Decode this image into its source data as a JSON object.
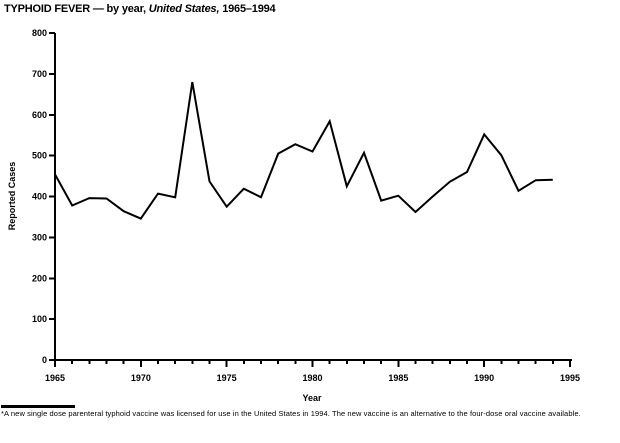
{
  "title": {
    "part1": "TYPHOID FEVER — by year, ",
    "part2": "United States,",
    "part3": " 1965–1994"
  },
  "chart_data": {
    "type": "line",
    "title": "TYPHOID FEVER — by year, United States, 1965–1994",
    "xlabel": "Year",
    "ylabel": "Reported Cases",
    "xlim": [
      1965,
      1995
    ],
    "ylim": [
      0,
      800
    ],
    "x_ticks": [
      1965,
      1970,
      1975,
      1980,
      1985,
      1990,
      1995
    ],
    "x_minor_step": 1,
    "y_ticks": [
      0,
      100,
      200,
      300,
      400,
      500,
      600,
      700,
      800
    ],
    "grid": false,
    "legend": "none",
    "line_color": "#000000",
    "background_color": "#ffffff",
    "x": [
      1965,
      1966,
      1967,
      1968,
      1969,
      1970,
      1971,
      1972,
      1973,
      1974,
      1975,
      1976,
      1977,
      1978,
      1979,
      1980,
      1981,
      1982,
      1983,
      1984,
      1985,
      1986,
      1987,
      1988,
      1989,
      1990,
      1991,
      1992,
      1993,
      1994
    ],
    "values": [
      454,
      378,
      396,
      395,
      364,
      346,
      407,
      398,
      680,
      437,
      375,
      419,
      398,
      505,
      528,
      510,
      584,
      425,
      507,
      390,
      402,
      362,
      400,
      436,
      460,
      552,
      501,
      414,
      440,
      441
    ]
  },
  "footnote": {
    "marker": "*",
    "text": "A new single dose parenteral typhoid vaccine was licensed for use in the United States in 1994. The new vaccine is an alternative to the four-dose oral vaccine available."
  }
}
